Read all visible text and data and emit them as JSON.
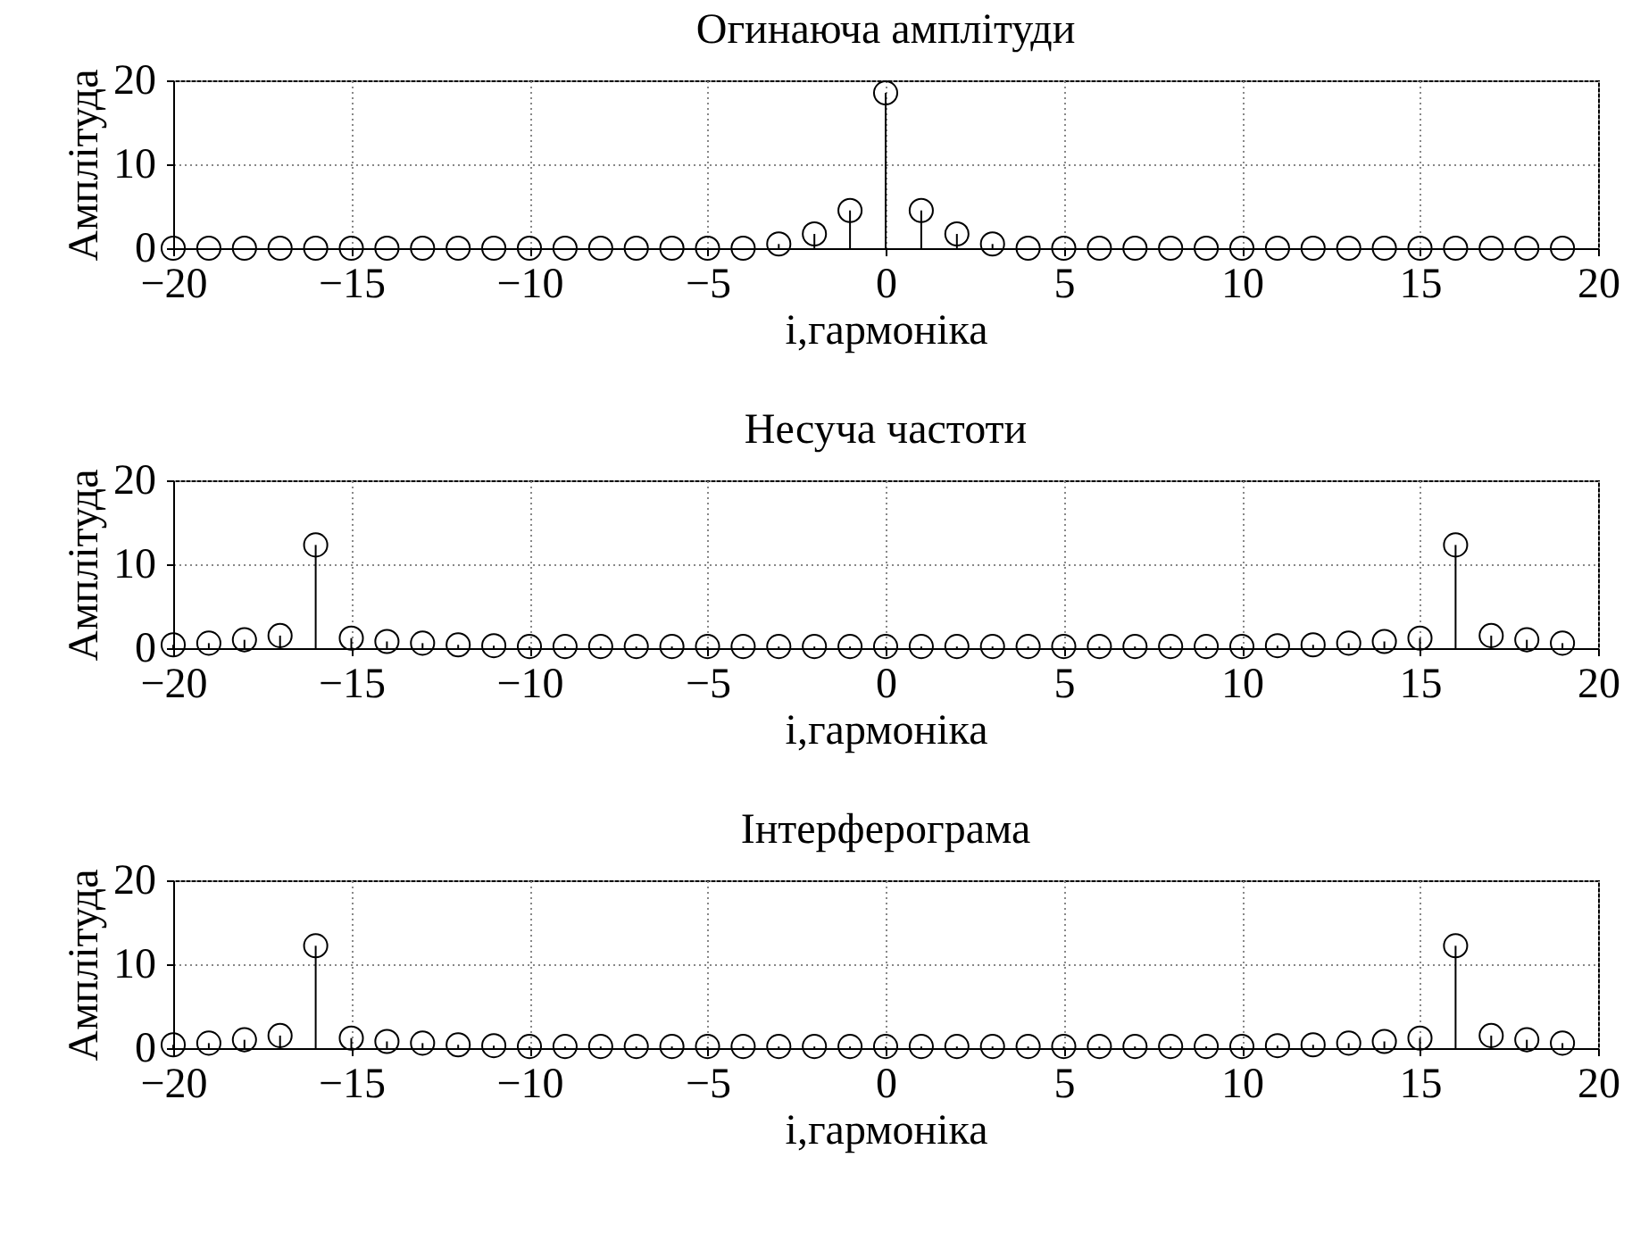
{
  "chart_data": [
    {
      "type": "lollipop",
      "title": "Огинаюча амплітуди",
      "xlabel": "i,гармоніка",
      "ylabel": "Амплітуда",
      "x": [
        -20,
        -19,
        -18,
        -17,
        -16,
        -15,
        -14,
        -13,
        -12,
        -11,
        -10,
        -9,
        -8,
        -7,
        -6,
        -5,
        -4,
        -3,
        -2,
        -1,
        0,
        1,
        2,
        3,
        4,
        5,
        6,
        7,
        8,
        9,
        10,
        11,
        12,
        13,
        14,
        15,
        16,
        17,
        18,
        19
      ],
      "values": [
        0,
        0,
        0,
        0,
        0,
        0,
        0,
        0,
        0,
        0,
        0,
        0,
        0,
        0,
        0,
        0,
        0,
        0.5,
        1.7,
        4.5,
        18.5,
        4.5,
        1.7,
        0.5,
        0,
        0,
        0,
        0,
        0,
        0,
        0,
        0,
        0,
        0,
        0,
        0,
        0,
        0,
        0,
        0
      ],
      "color": "#000000",
      "xlim": [
        -20,
        20
      ],
      "xticks": [
        -20,
        -15,
        -10,
        -5,
        0,
        5,
        10,
        15,
        20
      ],
      "ylim": [
        0,
        20
      ],
      "yticks": [
        0,
        10,
        20
      ],
      "grid": true,
      "marker": "circle"
    },
    {
      "type": "lollipop",
      "title": "Несуча частоти",
      "xlabel": "i,гармоніка",
      "ylabel": "Амплітуда",
      "x": [
        -20,
        -19,
        -18,
        -17,
        -16,
        -15,
        -14,
        -13,
        -12,
        -11,
        -10,
        -9,
        -8,
        -7,
        -6,
        -5,
        -4,
        -3,
        -2,
        -1,
        0,
        1,
        2,
        3,
        4,
        5,
        6,
        7,
        8,
        9,
        10,
        11,
        12,
        13,
        14,
        15,
        16,
        17,
        18,
        19
      ],
      "values": [
        0.4,
        0.6,
        1,
        1.5,
        12.3,
        1.2,
        0.8,
        0.6,
        0.4,
        0.3,
        0.2,
        0.2,
        0.2,
        0.2,
        0.2,
        0.2,
        0.2,
        0.2,
        0.2,
        0.2,
        0.2,
        0.2,
        0.2,
        0.2,
        0.2,
        0.2,
        0.2,
        0.2,
        0.2,
        0.2,
        0.2,
        0.3,
        0.4,
        0.6,
        0.8,
        1.2,
        12.3,
        1.5,
        1,
        0.6
      ],
      "color": "#000000",
      "xlim": [
        -20,
        20
      ],
      "xticks": [
        -20,
        -15,
        -10,
        -5,
        0,
        5,
        10,
        15,
        20
      ],
      "ylim": [
        0,
        20
      ],
      "yticks": [
        0,
        10,
        20
      ],
      "grid": true,
      "marker": "circle"
    },
    {
      "type": "lollipop",
      "title": "Інтерферограма",
      "xlabel": "i,гармоніка",
      "ylabel": "Амплітуда",
      "x": [
        -20,
        -19,
        -18,
        -17,
        -16,
        -15,
        -14,
        -13,
        -12,
        -11,
        -10,
        -9,
        -8,
        -7,
        -6,
        -5,
        -4,
        -3,
        -2,
        -1,
        0,
        1,
        2,
        3,
        4,
        5,
        6,
        7,
        8,
        9,
        10,
        11,
        12,
        13,
        14,
        15,
        16,
        17,
        18,
        19
      ],
      "values": [
        0.4,
        0.6,
        1,
        1.5,
        12.2,
        1.2,
        0.8,
        0.6,
        0.4,
        0.3,
        0.2,
        0.2,
        0.2,
        0.2,
        0.2,
        0.2,
        0.2,
        0.2,
        0.2,
        0.2,
        0.2,
        0.2,
        0.2,
        0.2,
        0.2,
        0.2,
        0.2,
        0.2,
        0.2,
        0.2,
        0.2,
        0.3,
        0.4,
        0.6,
        0.8,
        1.2,
        12.2,
        1.5,
        1,
        0.6
      ],
      "color": "#000000",
      "xlim": [
        -20,
        20
      ],
      "xticks": [
        -20,
        -15,
        -10,
        -5,
        0,
        5,
        10,
        15,
        20
      ],
      "ylim": [
        0,
        20
      ],
      "yticks": [
        0,
        10,
        20
      ],
      "grid": true,
      "marker": "circle"
    }
  ]
}
